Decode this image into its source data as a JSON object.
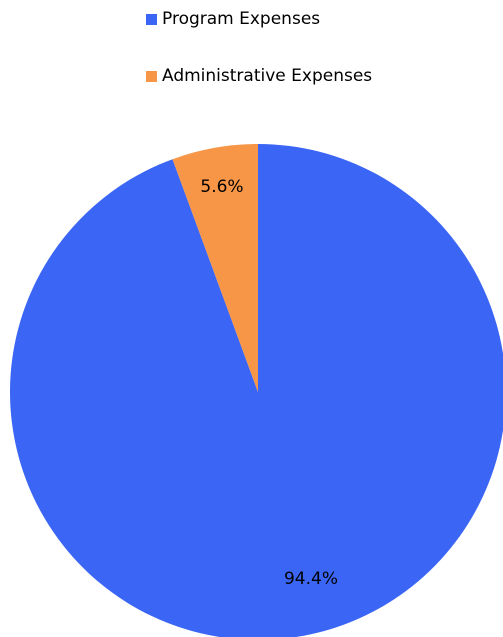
{
  "chart_data": {
    "type": "pie",
    "title": "",
    "legend_position": "top",
    "slices": [
      {
        "name": "Program Expenses",
        "value": 94.4,
        "label": "94.4%",
        "color": "#3B66F5"
      },
      {
        "name": "Administrative Expenses",
        "value": 5.6,
        "label": "5.6%",
        "color": "#F79646"
      }
    ]
  }
}
